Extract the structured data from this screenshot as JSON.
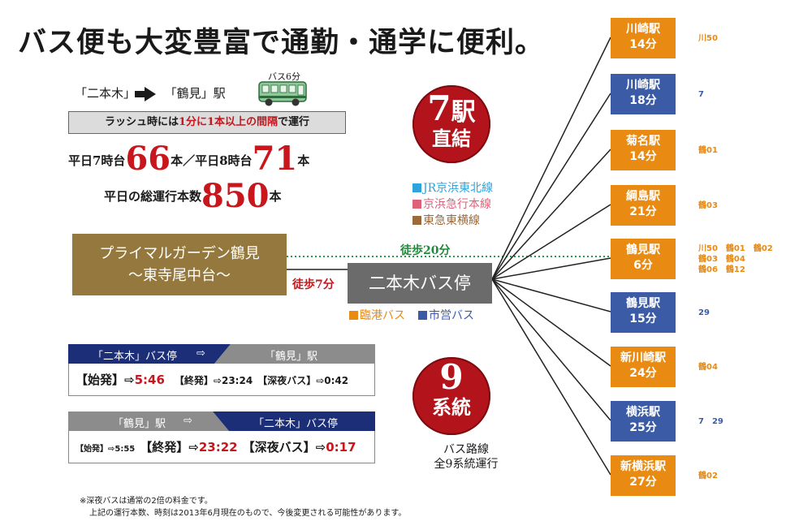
{
  "title": "バス便も大変豊富で通勤・通学に便利。",
  "route": {
    "from": "「二本木」",
    "to": "「鶴見」駅",
    "bus_caption": "バス6分"
  },
  "rush": {
    "part1": "ラッシュ時には",
    "highlight1": "1分に1本以上の間隔",
    "part2": "で運行"
  },
  "weekday_counts": {
    "seg1": "平日7時台",
    "n1": "66",
    "seg2": "本／平日8時台",
    "n2": "71",
    "seg3": "本"
  },
  "weekday_total": {
    "label": "平日の総運行本数",
    "n": "850",
    "unit": "本"
  },
  "stations_badge": {
    "number": "7",
    "char": "駅",
    "word": "直結"
  },
  "lines_legend": [
    {
      "label": "JR京浜東北線",
      "color": "#2fa3dc"
    },
    {
      "label": "京浜急行本線",
      "color": "#e0607a"
    },
    {
      "label": "東急東横線",
      "color": "#9a6a3a"
    }
  ],
  "property": {
    "line1": "プライマルガーデン鶴見",
    "line2": "～東寺尾中台～"
  },
  "walk20": "徒歩20分",
  "walk7": "徒歩7分",
  "bus_stop": "二本木バス停",
  "bus_legend": [
    {
      "label": "臨港バス",
      "color": "#e98a13"
    },
    {
      "label": "市営バス",
      "color": "#3b5ba6"
    }
  ],
  "routes_badge": {
    "number": "9",
    "word": "系統"
  },
  "routes_total": {
    "line1": "バス路線",
    "line2": "全9系統運行"
  },
  "timetable1": {
    "from": "「二本木」バス停",
    "arrow": "⇨",
    "to": "「鶴見」駅",
    "first_label": "【始発】",
    "first_arrow": "⇨",
    "first_time": "5:46",
    "last_label": "【終発】",
    "last_arrow": "⇨",
    "last_time": "23:24",
    "night_label": "【深夜バス】",
    "night_arrow": "⇨",
    "night_time": "0:42"
  },
  "timetable2": {
    "from": "「鶴見」駅",
    "arrow": "⇨",
    "to": "「二本木」バス停",
    "first_label": "【始発】",
    "first_arrow": "⇨",
    "first_time": "5:55",
    "last_label": "【終発】",
    "last_arrow": "⇨",
    "last_time": "23:22",
    "night_label": "【深夜バス】",
    "night_arrow": "⇨",
    "night_time": "0:17"
  },
  "destinations": [
    {
      "name": "川崎駅",
      "time": "14分",
      "color": "#e98a13",
      "routes": [
        "川50"
      ]
    },
    {
      "name": "川崎駅",
      "time": "18分",
      "color": "#3b5ba6",
      "routes": [
        "7"
      ]
    },
    {
      "name": "菊名駅",
      "time": "14分",
      "color": "#e98a13",
      "routes": [
        "鶴01"
      ]
    },
    {
      "name": "綱島駅",
      "time": "21分",
      "color": "#e98a13",
      "routes": [
        "鶴03"
      ]
    },
    {
      "name": "鶴見駅",
      "time": "6分",
      "color": "#e98a13",
      "routes": [
        "川50　鶴01　鶴02",
        "鶴03　鶴04",
        "鶴06　鶴12"
      ]
    },
    {
      "name": "鶴見駅",
      "time": "15分",
      "color": "#3b5ba6",
      "routes": [
        "29"
      ]
    },
    {
      "name": "新川崎駅",
      "time": "24分",
      "color": "#e98a13",
      "routes": [
        "鶴04"
      ]
    },
    {
      "name": "横浜駅",
      "time": "25分",
      "color": "#3b5ba6",
      "routes": [
        "7　29"
      ]
    },
    {
      "name": "新横浜駅",
      "time": "27分",
      "color": "#e98a13",
      "routes": [
        "鶴02"
      ]
    }
  ],
  "notes": [
    "※深夜バスは通常の2倍の料金です。",
    "上記の運行本数、時刻は2013年6月現在のもので、今後変更される可能性があります。"
  ]
}
